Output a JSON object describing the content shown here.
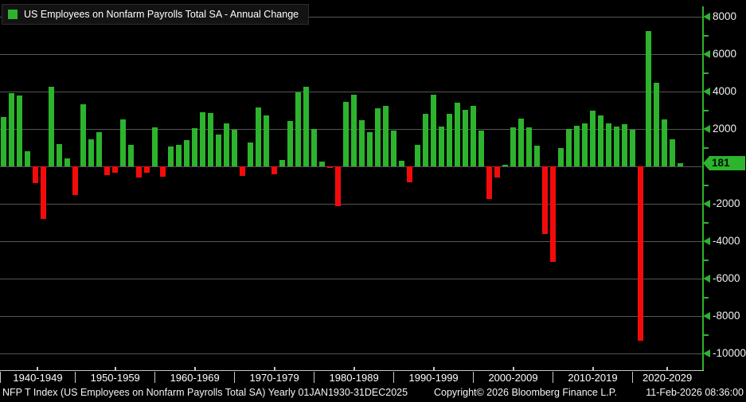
{
  "legend": {
    "label": "US Employees on Nonfarm Payrolls Total SA - Annual Change",
    "swatch_color": "#2db32d"
  },
  "chart_data": {
    "type": "bar",
    "title": "US Employees on Nonfarm Payrolls Total SA - Annual Change",
    "x": [
      1940,
      1941,
      1942,
      1943,
      1944,
      1945,
      1946,
      1947,
      1948,
      1949,
      1950,
      1951,
      1952,
      1953,
      1954,
      1955,
      1956,
      1957,
      1958,
      1959,
      1960,
      1961,
      1962,
      1963,
      1964,
      1965,
      1966,
      1967,
      1968,
      1969,
      1970,
      1971,
      1972,
      1973,
      1974,
      1975,
      1976,
      1977,
      1978,
      1979,
      1980,
      1981,
      1982,
      1983,
      1984,
      1985,
      1986,
      1987,
      1988,
      1989,
      1990,
      1991,
      1992,
      1993,
      1994,
      1995,
      1996,
      1997,
      1998,
      1999,
      2000,
      2001,
      2002,
      2003,
      2004,
      2005,
      2006,
      2007,
      2008,
      2009,
      2010,
      2011,
      2012,
      2013,
      2014,
      2015,
      2016,
      2017,
      2018,
      2019,
      2020,
      2021,
      2022,
      2023,
      2024,
      2025
    ],
    "values": [
      2650,
      3930,
      3815,
      840,
      -880,
      -2790,
      4270,
      1190,
      445,
      -1520,
      3345,
      1450,
      1850,
      -470,
      -325,
      2510,
      1150,
      -580,
      -325,
      2100,
      -540,
      1090,
      1160,
      1400,
      2055,
      2905,
      2865,
      1715,
      2310,
      1955,
      -485,
      1290,
      3160,
      2735,
      -415,
      350,
      2455,
      3975,
      4260,
      2030,
      285,
      -80,
      -2125,
      3445,
      3830,
      2500,
      1860,
      3130,
      3260,
      1915,
      325,
      -840,
      1150,
      2810,
      3830,
      2140,
      2810,
      3420,
      3020,
      3230,
      1915,
      -1745,
      -565,
      100,
      2100,
      2555,
      2100,
      1120,
      -3590,
      -5080,
      990,
      2030,
      2170,
      2320,
      2990,
      2740,
      2320,
      2130,
      2280,
      1970,
      -9320,
      7250,
      4495,
      2540,
      1470,
      181
    ],
    "ylim": [
      -10880,
      8565
    ],
    "y_major_ticks": [
      8000,
      6000,
      4000,
      2000,
      0,
      -2000,
      -4000,
      -6000,
      -8000,
      -10000
    ],
    "y_tick_labels": [
      "8000",
      "6000",
      "4000",
      "2000",
      "-2000",
      "-4000",
      "-6000",
      "-8000",
      "-10000"
    ],
    "y_minor_ticks": [
      7000,
      5000,
      3000,
      1000,
      -1000,
      -3000,
      -5000,
      -7000,
      -9000
    ],
    "grid": true,
    "legend_position": "top-left",
    "last_value": 181,
    "last_value_label": "181",
    "colors": {
      "positive": "#2db32d",
      "negative": "#f30b0b",
      "axis": "#2db32d",
      "gridline": "#565656"
    }
  },
  "x_axis": {
    "decade_labels": [
      "1940-1949",
      "1950-1959",
      "1960-1969",
      "1970-1979",
      "1980-1989",
      "1990-1999",
      "2000-2009",
      "2010-2019",
      "2020-2029"
    ]
  },
  "y_axis": {
    "current_value_label": "181"
  },
  "status_bar": {
    "left": "NFP T Index (US Employees on Nonfarm Payrolls Total SA) Yearly 01JAN1930-31DEC2025",
    "copyright": "Copyright© 2026 Bloomberg Finance L.P.",
    "datetime": "11-Feb-2026 08:36:00"
  }
}
